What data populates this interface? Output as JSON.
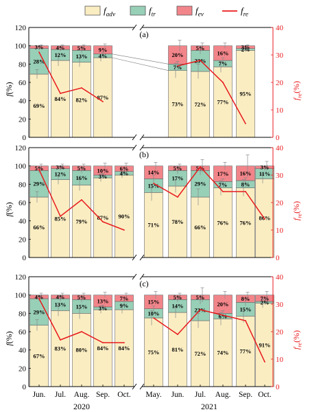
{
  "chart_data": {
    "type": "bar",
    "stacked": true,
    "legend": {
      "placement": "top",
      "entries": [
        {
          "key": "adv",
          "base": "f",
          "sub": "adv",
          "kind": "patch",
          "color": "#faedc2"
        },
        {
          "key": "tr",
          "base": "f",
          "sub": "tr",
          "kind": "patch",
          "color": "#98cfb7"
        },
        {
          "key": "ev",
          "base": "f",
          "sub": "ev",
          "kind": "patch",
          "color": "#f2858a"
        },
        {
          "key": "re",
          "base": "f",
          "sub": "re",
          "kind": "line",
          "color": "#e8191c"
        }
      ]
    },
    "colors": {
      "adv": "#faedc2",
      "tr": "#98cfb7",
      "ev": "#f2858a",
      "re": "#e8191c",
      "left_axis": "#000000",
      "right_axis": "#e8191c"
    },
    "categories": [
      "Jun.",
      "Jul.",
      "Aug.",
      "Sep.",
      "Oct.",
      "May.",
      "Jun.",
      "Jul.",
      "Aug.",
      "Sep.",
      "Oct."
    ],
    "year_labels": [
      {
        "text": "2020",
        "from": 0,
        "to": 4
      },
      {
        "text": "2021",
        "from": 5,
        "to": 10
      }
    ],
    "left_axis": {
      "label_base": "f",
      "label_unit": "(%)",
      "ylim": [
        0,
        120
      ],
      "ticks": [
        "0",
        "20",
        "40",
        "60",
        "80",
        "100",
        "120"
      ]
    },
    "right_axis": {
      "label_base": "f",
      "label_sub": "re",
      "label_unit": "(%)",
      "ylim": [
        0,
        40
      ],
      "ticks": [
        "0",
        "10",
        "20",
        "30",
        "40"
      ]
    },
    "panels": [
      {
        "label": "(a)",
        "bars": [
          {
            "slot": 0,
            "adv": 69,
            "tr": 28,
            "ev": 3,
            "adv_label": "69%",
            "tr_label": "28%",
            "ev_label": "3%",
            "err_adv": 5,
            "err_tr": 2,
            "err_ev": 1
          },
          {
            "slot": 1,
            "adv": 84,
            "tr": 12,
            "ev": 4,
            "adv_label": "84%",
            "tr_label": "12%",
            "ev_label": "4%",
            "err_adv": 6,
            "err_tr": 2,
            "err_ev": 1
          },
          {
            "slot": 2,
            "adv": 82,
            "tr": 13,
            "ev": 5,
            "adv_label": "82%",
            "tr_label": "13%",
            "ev_label": "5%",
            "err_adv": 5,
            "err_tr": 3,
            "err_ev": 1
          },
          {
            "slot": 3,
            "adv": 87,
            "tr": 4,
            "ev": 9,
            "adv_label": "87%",
            "tr_label": "4%",
            "ev_label": "9%",
            "err_adv": 4,
            "err_tr": 2,
            "err_ev": 2
          },
          {
            "slot": 6,
            "adv": 73,
            "tr": 7,
            "ev": 20,
            "adv_label": "73%",
            "tr_label": "7%",
            "ev_label": "20%",
            "err_adv": 8,
            "err_tr": 3,
            "err_ev": 6
          },
          {
            "slot": 7,
            "adv": 72,
            "tr": 23,
            "ev": 5,
            "adv_label": "72%",
            "tr_label": "23%",
            "ev_label": "5%",
            "err_adv": 8,
            "err_tr": 4,
            "err_ev": 3
          },
          {
            "slot": 8,
            "adv": 77,
            "tr": 7,
            "ev": 16,
            "adv_label": "77%",
            "tr_label": "7%",
            "ev_label": "16%",
            "err_adv": 6,
            "err_tr": 3,
            "err_ev": 3
          },
          {
            "slot": 9,
            "adv": 95,
            "tr": 2,
            "ev": 3,
            "adv_label": "95%",
            "tr_label": "2%",
            "ev_label": "3%",
            "err_adv": 2,
            "err_tr": 1,
            "err_ev": 1
          }
        ],
        "fre_segments": [
          {
            "slots": [
              0,
              1,
              2,
              3
            ],
            "values": [
              31,
              16,
              18,
              13
            ]
          },
          {
            "slots": [
              6,
              7,
              8,
              9
            ],
            "values": [
              26,
              28,
              20,
              5
            ]
          }
        ]
      },
      {
        "label": "(b)",
        "bars": [
          {
            "slot": 0,
            "adv": 66,
            "tr": 29,
            "ev": 5,
            "adv_label": "66%",
            "tr_label": "29%",
            "ev_label": "5%",
            "err_adv": 6,
            "err_tr": 3,
            "err_ev": 2
          },
          {
            "slot": 1,
            "adv": 85,
            "tr": 12,
            "ev": 3,
            "adv_label": "85%",
            "tr_label": "12%",
            "ev_label": "3%",
            "err_adv": 5,
            "err_tr": 2,
            "err_ev": 2
          },
          {
            "slot": 2,
            "adv": 79,
            "tr": 16,
            "ev": 5,
            "adv_label": "79%",
            "tr_label": "16%",
            "ev_label": "5%",
            "err_adv": 6,
            "err_tr": 3,
            "err_ev": 2
          },
          {
            "slot": 3,
            "adv": 87,
            "tr": 3,
            "ev": 10,
            "adv_label": "87%",
            "tr_label": "3%",
            "ev_label": "10%",
            "err_adv": 4,
            "err_tr": 2,
            "err_ev": 3
          },
          {
            "slot": 4,
            "adv": 90,
            "tr": 4,
            "ev": 6,
            "adv_label": "90%",
            "tr_label": "4%",
            "ev_label": "6%",
            "err_adv": 3,
            "err_tr": 2,
            "err_ev": 3
          },
          {
            "slot": 5,
            "adv": 71,
            "tr": 15,
            "ev": 14,
            "adv_label": "71%",
            "tr_label": "15%",
            "ev_label": "14%",
            "err_adv": 9,
            "err_tr": 4,
            "err_ev": 4
          },
          {
            "slot": 6,
            "adv": 78,
            "tr": 17,
            "ev": 5,
            "adv_label": "78%",
            "tr_label": "17%",
            "ev_label": "5%",
            "err_adv": 7,
            "err_tr": 4,
            "err_ev": 2
          },
          {
            "slot": 7,
            "adv": 66,
            "tr": 29,
            "ev": 5,
            "adv_label": "66%",
            "tr_label": "29%",
            "ev_label": "5%",
            "err_adv": 9,
            "err_tr": 5,
            "err_ev": 7
          },
          {
            "slot": 8,
            "adv": 76,
            "tr": 7,
            "ev": 17,
            "adv_label": "76%",
            "tr_label": "7%",
            "ev_label": "17%",
            "err_adv": 8,
            "err_tr": 3,
            "err_ev": 4
          },
          {
            "slot": 9,
            "adv": 76,
            "tr": 8,
            "ev": 16,
            "adv_label": "76%",
            "tr_label": "8%",
            "ev_label": "16%",
            "err_adv": 9,
            "err_tr": 3,
            "err_ev": 12
          },
          {
            "slot": 10,
            "adv": 86,
            "tr": 11,
            "ev": 3,
            "adv_label": "86%",
            "tr_label": "11%",
            "ev_label": "3%",
            "err_adv": 5,
            "err_tr": 2,
            "err_ev": 5
          }
        ],
        "fre_segments": [
          {
            "slots": [
              0,
              1,
              2,
              3,
              4
            ],
            "values": [
              32,
              15,
              21,
              13,
              10
            ]
          },
          {
            "slots": [
              5,
              6,
              7,
              8,
              9,
              10
            ],
            "values": [
              27,
              22,
              33,
              24,
              24,
              14
            ]
          }
        ]
      },
      {
        "label": "(c)",
        "bars": [
          {
            "slot": 0,
            "adv": 67,
            "tr": 29,
            "ev": 4,
            "adv_label": "67%",
            "tr_label": "29%",
            "ev_label": "4%",
            "err_adv": 6,
            "err_tr": 3,
            "err_ev": 2
          },
          {
            "slot": 1,
            "adv": 83,
            "tr": 13,
            "ev": 4,
            "adv_label": "83%",
            "tr_label": "13%",
            "ev_label": "4%",
            "err_adv": 6,
            "err_tr": 3,
            "err_ev": 2
          },
          {
            "slot": 2,
            "adv": 80,
            "tr": 15,
            "ev": 5,
            "adv_label": "80%",
            "tr_label": "15%",
            "ev_label": "5%",
            "err_adv": 6,
            "err_tr": 3,
            "err_ev": 2
          },
          {
            "slot": 3,
            "adv": 84,
            "tr": 3,
            "ev": 13,
            "adv_label": "84%",
            "tr_label": "3%",
            "ev_label": "13%",
            "err_adv": 4,
            "err_tr": 2,
            "err_ev": 3
          },
          {
            "slot": 4,
            "adv": 84,
            "tr": 9,
            "ev": 7,
            "adv_label": "84%",
            "tr_label": "9%",
            "ev_label": "7%",
            "err_adv": 4,
            "err_tr": 2,
            "err_ev": 2
          },
          {
            "slot": 5,
            "adv": 75,
            "tr": 10,
            "ev": 15,
            "adv_label": "75%",
            "tr_label": "10%",
            "ev_label": "15%",
            "err_adv": 8,
            "err_tr": 3,
            "err_ev": 4
          },
          {
            "slot": 6,
            "adv": 81,
            "tr": 14,
            "ev": 5,
            "adv_label": "81%",
            "tr_label": "14%",
            "ev_label": "5%",
            "err_adv": 6,
            "err_tr": 3,
            "err_ev": 2
          },
          {
            "slot": 7,
            "adv": 72,
            "tr": 23,
            "ev": 5,
            "adv_label": "72%",
            "tr_label": "23%",
            "ev_label": "5%",
            "err_adv": 8,
            "err_tr": 5,
            "err_ev": 8
          },
          {
            "slot": 8,
            "adv": 74,
            "tr": 6,
            "ev": 20,
            "adv_label": "74%",
            "tr_label": "6%",
            "ev_label": "20%",
            "err_adv": 7,
            "err_tr": 3,
            "err_ev": 4
          },
          {
            "slot": 9,
            "adv": 77,
            "tr": 15,
            "ev": 8,
            "adv_label": "77%",
            "tr_label": "15%",
            "ev_label": "8%",
            "err_adv": 7,
            "err_tr": 4,
            "err_ev": 3
          },
          {
            "slot": 10,
            "adv": 91,
            "tr": 2,
            "ev": 7,
            "adv_label": "91%",
            "tr_label": "2%",
            "ev_label": "7%",
            "err_adv": 5,
            "err_tr": 2,
            "err_ev": 4
          }
        ],
        "fre_segments": [
          {
            "slots": [
              0,
              1,
              2,
              3,
              4
            ],
            "values": [
              32,
              17,
              20,
              16,
              16
            ]
          },
          {
            "slots": [
              5,
              6,
              7,
              8,
              9,
              10
            ],
            "values": [
              25,
              19,
              28,
              26,
              24,
              9
            ]
          }
        ]
      }
    ]
  }
}
